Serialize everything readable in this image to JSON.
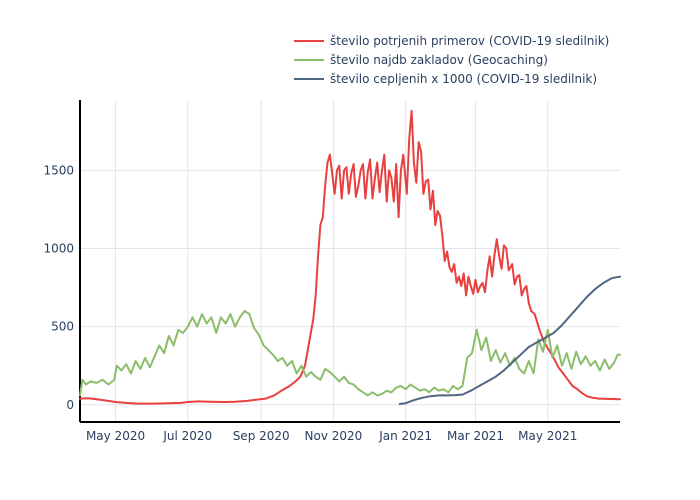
{
  "chart_data": {
    "type": "line",
    "title": "",
    "xlabel": "",
    "ylabel": "",
    "xlim": [
      "2020-04-01",
      "2021-07-01"
    ],
    "ylim": [
      -110,
      1950
    ],
    "grid": true,
    "legend_position": "top-right",
    "x_ticks": [
      {
        "date": "2020-05-01",
        "label": "May 2020"
      },
      {
        "date": "2020-07-01",
        "label": "Jul 2020"
      },
      {
        "date": "2020-09-01",
        "label": "Sep 2020"
      },
      {
        "date": "2020-11-01",
        "label": "Nov 2020"
      },
      {
        "date": "2021-01-01",
        "label": "Jan 2021"
      },
      {
        "date": "2021-03-01",
        "label": "Mar 2021"
      },
      {
        "date": "2021-05-01",
        "label": "May 2021"
      }
    ],
    "y_ticks": [
      0,
      500,
      1000,
      1500
    ],
    "series": [
      {
        "name": "število potrjenih primerov (COVID-19 sledilnik)",
        "color": "#e8403f",
        "points": [
          [
            "2020-04-01",
            40
          ],
          [
            "2020-04-08",
            42
          ],
          [
            "2020-04-15",
            35
          ],
          [
            "2020-04-22",
            28
          ],
          [
            "2020-05-01",
            18
          ],
          [
            "2020-05-10",
            12
          ],
          [
            "2020-05-20",
            8
          ],
          [
            "2020-06-01",
            8
          ],
          [
            "2020-06-15",
            10
          ],
          [
            "2020-06-25",
            12
          ],
          [
            "2020-07-01",
            18
          ],
          [
            "2020-07-10",
            22
          ],
          [
            "2020-07-20",
            20
          ],
          [
            "2020-08-01",
            18
          ],
          [
            "2020-08-10",
            20
          ],
          [
            "2020-08-20",
            25
          ],
          [
            "2020-08-31",
            35
          ],
          [
            "2020-09-05",
            40
          ],
          [
            "2020-09-12",
            60
          ],
          [
            "2020-09-18",
            90
          ],
          [
            "2020-09-25",
            120
          ],
          [
            "2020-09-30",
            150
          ],
          [
            "2020-10-04",
            180
          ],
          [
            "2020-10-08",
            250
          ],
          [
            "2020-10-12",
            420
          ],
          [
            "2020-10-15",
            550
          ],
          [
            "2020-10-17",
            700
          ],
          [
            "2020-10-19",
            950
          ],
          [
            "2020-10-21",
            1150
          ],
          [
            "2020-10-23",
            1200
          ],
          [
            "2020-10-25",
            1400
          ],
          [
            "2020-10-27",
            1550
          ],
          [
            "2020-10-29",
            1600
          ],
          [
            "2020-10-31",
            1480
          ],
          [
            "2020-11-02",
            1350
          ],
          [
            "2020-11-04",
            1500
          ],
          [
            "2020-11-06",
            1530
          ],
          [
            "2020-11-08",
            1320
          ],
          [
            "2020-11-10",
            1500
          ],
          [
            "2020-11-12",
            1520
          ],
          [
            "2020-11-14",
            1350
          ],
          [
            "2020-11-16",
            1480
          ],
          [
            "2020-11-18",
            1540
          ],
          [
            "2020-11-20",
            1330
          ],
          [
            "2020-11-22",
            1400
          ],
          [
            "2020-11-24",
            1500
          ],
          [
            "2020-11-26",
            1540
          ],
          [
            "2020-11-28",
            1320
          ],
          [
            "2020-11-30",
            1490
          ],
          [
            "2020-12-02",
            1570
          ],
          [
            "2020-12-04",
            1320
          ],
          [
            "2020-12-06",
            1450
          ],
          [
            "2020-12-08",
            1550
          ],
          [
            "2020-12-10",
            1360
          ],
          [
            "2020-12-12",
            1500
          ],
          [
            "2020-12-14",
            1600
          ],
          [
            "2020-12-16",
            1300
          ],
          [
            "2020-12-18",
            1500
          ],
          [
            "2020-12-20",
            1450
          ],
          [
            "2020-12-22",
            1300
          ],
          [
            "2020-12-24",
            1540
          ],
          [
            "2020-12-26",
            1200
          ],
          [
            "2020-12-28",
            1500
          ],
          [
            "2020-12-30",
            1600
          ],
          [
            "2021-01-02",
            1350
          ],
          [
            "2021-01-04",
            1700
          ],
          [
            "2021-01-06",
            1880
          ],
          [
            "2021-01-08",
            1550
          ],
          [
            "2021-01-10",
            1420
          ],
          [
            "2021-01-12",
            1680
          ],
          [
            "2021-01-14",
            1620
          ],
          [
            "2021-01-16",
            1350
          ],
          [
            "2021-01-18",
            1430
          ],
          [
            "2021-01-20",
            1440
          ],
          [
            "2021-01-22",
            1250
          ],
          [
            "2021-01-24",
            1370
          ],
          [
            "2021-01-26",
            1150
          ],
          [
            "2021-01-28",
            1240
          ],
          [
            "2021-01-30",
            1210
          ],
          [
            "2021-02-01",
            1080
          ],
          [
            "2021-02-03",
            920
          ],
          [
            "2021-02-05",
            980
          ],
          [
            "2021-02-07",
            880
          ],
          [
            "2021-02-09",
            850
          ],
          [
            "2021-02-11",
            900
          ],
          [
            "2021-02-13",
            780
          ],
          [
            "2021-02-15",
            820
          ],
          [
            "2021-02-17",
            760
          ],
          [
            "2021-02-19",
            840
          ],
          [
            "2021-02-21",
            700
          ],
          [
            "2021-02-23",
            820
          ],
          [
            "2021-02-25",
            760
          ],
          [
            "2021-02-27",
            710
          ],
          [
            "2021-03-01",
            800
          ],
          [
            "2021-03-03",
            720
          ],
          [
            "2021-03-05",
            760
          ],
          [
            "2021-03-07",
            780
          ],
          [
            "2021-03-09",
            720
          ],
          [
            "2021-03-11",
            860
          ],
          [
            "2021-03-13",
            950
          ],
          [
            "2021-03-15",
            820
          ],
          [
            "2021-03-17",
            960
          ],
          [
            "2021-03-19",
            1060
          ],
          [
            "2021-03-21",
            950
          ],
          [
            "2021-03-23",
            870
          ],
          [
            "2021-03-25",
            1020
          ],
          [
            "2021-03-27",
            1000
          ],
          [
            "2021-03-29",
            860
          ],
          [
            "2021-04-01",
            900
          ],
          [
            "2021-04-03",
            770
          ],
          [
            "2021-04-05",
            820
          ],
          [
            "2021-04-07",
            830
          ],
          [
            "2021-04-09",
            700
          ],
          [
            "2021-04-11",
            740
          ],
          [
            "2021-04-13",
            760
          ],
          [
            "2021-04-15",
            650
          ],
          [
            "2021-04-17",
            600
          ],
          [
            "2021-04-20",
            580
          ],
          [
            "2021-04-24",
            480
          ],
          [
            "2021-04-28",
            400
          ],
          [
            "2021-05-02",
            350
          ],
          [
            "2021-05-06",
            300
          ],
          [
            "2021-05-10",
            240
          ],
          [
            "2021-05-14",
            200
          ],
          [
            "2021-05-18",
            160
          ],
          [
            "2021-05-22",
            120
          ],
          [
            "2021-05-26",
            100
          ],
          [
            "2021-05-30",
            75
          ],
          [
            "2021-06-03",
            55
          ],
          [
            "2021-06-08",
            45
          ],
          [
            "2021-06-13",
            40
          ],
          [
            "2021-06-20",
            38
          ],
          [
            "2021-07-01",
            35
          ]
        ]
      },
      {
        "name": "število najdb zakladov (Geocaching)",
        "color": "#8bbd6b",
        "points": [
          [
            "2020-04-01",
            60
          ],
          [
            "2020-04-03",
            160
          ],
          [
            "2020-04-06",
            130
          ],
          [
            "2020-04-10",
            150
          ],
          [
            "2020-04-15",
            140
          ],
          [
            "2020-04-20",
            160
          ],
          [
            "2020-04-25",
            130
          ],
          [
            "2020-04-30",
            160
          ],
          [
            "2020-05-02",
            250
          ],
          [
            "2020-05-06",
            220
          ],
          [
            "2020-05-10",
            260
          ],
          [
            "2020-05-14",
            200
          ],
          [
            "2020-05-18",
            280
          ],
          [
            "2020-05-22",
            230
          ],
          [
            "2020-05-26",
            300
          ],
          [
            "2020-05-30",
            240
          ],
          [
            "2020-06-03",
            310
          ],
          [
            "2020-06-07",
            380
          ],
          [
            "2020-06-11",
            330
          ],
          [
            "2020-06-15",
            440
          ],
          [
            "2020-06-19",
            380
          ],
          [
            "2020-06-23",
            480
          ],
          [
            "2020-06-27",
            460
          ],
          [
            "2020-07-01",
            500
          ],
          [
            "2020-07-05",
            560
          ],
          [
            "2020-07-09",
            500
          ],
          [
            "2020-07-13",
            580
          ],
          [
            "2020-07-17",
            520
          ],
          [
            "2020-07-21",
            560
          ],
          [
            "2020-07-25",
            460
          ],
          [
            "2020-07-29",
            560
          ],
          [
            "2020-08-02",
            520
          ],
          [
            "2020-08-06",
            580
          ],
          [
            "2020-08-10",
            500
          ],
          [
            "2020-08-14",
            560
          ],
          [
            "2020-08-18",
            600
          ],
          [
            "2020-08-22",
            580
          ],
          [
            "2020-08-26",
            490
          ],
          [
            "2020-08-30",
            450
          ],
          [
            "2020-09-03",
            380
          ],
          [
            "2020-09-07",
            350
          ],
          [
            "2020-09-11",
            320
          ],
          [
            "2020-09-15",
            280
          ],
          [
            "2020-09-19",
            300
          ],
          [
            "2020-09-23",
            250
          ],
          [
            "2020-09-27",
            280
          ],
          [
            "2020-10-01",
            200
          ],
          [
            "2020-10-05",
            250
          ],
          [
            "2020-10-09",
            180
          ],
          [
            "2020-10-13",
            210
          ],
          [
            "2020-10-17",
            180
          ],
          [
            "2020-10-21",
            160
          ],
          [
            "2020-10-25",
            230
          ],
          [
            "2020-10-29",
            210
          ],
          [
            "2020-11-02",
            180
          ],
          [
            "2020-11-06",
            150
          ],
          [
            "2020-11-10",
            180
          ],
          [
            "2020-11-14",
            140
          ],
          [
            "2020-11-18",
            130
          ],
          [
            "2020-11-22",
            100
          ],
          [
            "2020-11-26",
            80
          ],
          [
            "2020-11-30",
            60
          ],
          [
            "2020-12-04",
            80
          ],
          [
            "2020-12-08",
            60
          ],
          [
            "2020-12-12",
            70
          ],
          [
            "2020-12-16",
            90
          ],
          [
            "2020-12-20",
            80
          ],
          [
            "2020-12-24",
            110
          ],
          [
            "2020-12-28",
            120
          ],
          [
            "2021-01-01",
            100
          ],
          [
            "2021-01-05",
            130
          ],
          [
            "2021-01-09",
            110
          ],
          [
            "2021-01-13",
            90
          ],
          [
            "2021-01-17",
            100
          ],
          [
            "2021-01-21",
            80
          ],
          [
            "2021-01-25",
            110
          ],
          [
            "2021-01-29",
            90
          ],
          [
            "2021-02-02",
            100
          ],
          [
            "2021-02-06",
            80
          ],
          [
            "2021-02-10",
            120
          ],
          [
            "2021-02-14",
            100
          ],
          [
            "2021-02-18",
            120
          ],
          [
            "2021-02-22",
            300
          ],
          [
            "2021-02-26",
            330
          ],
          [
            "2021-03-02",
            480
          ],
          [
            "2021-03-06",
            350
          ],
          [
            "2021-03-10",
            430
          ],
          [
            "2021-03-14",
            280
          ],
          [
            "2021-03-18",
            350
          ],
          [
            "2021-03-22",
            270
          ],
          [
            "2021-03-26",
            330
          ],
          [
            "2021-03-30",
            250
          ],
          [
            "2021-04-03",
            300
          ],
          [
            "2021-04-07",
            230
          ],
          [
            "2021-04-11",
            200
          ],
          [
            "2021-04-15",
            280
          ],
          [
            "2021-04-19",
            200
          ],
          [
            "2021-04-23",
            420
          ],
          [
            "2021-04-27",
            340
          ],
          [
            "2021-05-01",
            480
          ],
          [
            "2021-05-05",
            300
          ],
          [
            "2021-05-09",
            380
          ],
          [
            "2021-05-13",
            250
          ],
          [
            "2021-05-17",
            330
          ],
          [
            "2021-05-21",
            230
          ],
          [
            "2021-05-25",
            340
          ],
          [
            "2021-05-29",
            260
          ],
          [
            "2021-06-02",
            310
          ],
          [
            "2021-06-06",
            250
          ],
          [
            "2021-06-10",
            280
          ],
          [
            "2021-06-14",
            220
          ],
          [
            "2021-06-18",
            290
          ],
          [
            "2021-06-22",
            230
          ],
          [
            "2021-06-26",
            270
          ],
          [
            "2021-06-29",
            320
          ],
          [
            "2021-07-01",
            320
          ]
        ]
      },
      {
        "name": "število cepljenih x 1000 (COVID-19 sledilnik)",
        "color": "#506784",
        "points": [
          [
            "2020-12-27",
            5
          ],
          [
            "2021-01-01",
            10
          ],
          [
            "2021-01-08",
            30
          ],
          [
            "2021-01-15",
            45
          ],
          [
            "2021-01-22",
            55
          ],
          [
            "2021-01-29",
            60
          ],
          [
            "2021-02-05",
            60
          ],
          [
            "2021-02-12",
            62
          ],
          [
            "2021-02-18",
            65
          ],
          [
            "2021-02-25",
            90
          ],
          [
            "2021-03-04",
            120
          ],
          [
            "2021-03-11",
            150
          ],
          [
            "2021-03-18",
            180
          ],
          [
            "2021-03-25",
            220
          ],
          [
            "2021-04-01",
            270
          ],
          [
            "2021-04-08",
            320
          ],
          [
            "2021-04-15",
            370
          ],
          [
            "2021-04-22",
            400
          ],
          [
            "2021-04-29",
            430
          ],
          [
            "2021-05-06",
            460
          ],
          [
            "2021-05-13",
            510
          ],
          [
            "2021-05-20",
            570
          ],
          [
            "2021-05-27",
            630
          ],
          [
            "2021-06-03",
            690
          ],
          [
            "2021-06-10",
            740
          ],
          [
            "2021-06-17",
            780
          ],
          [
            "2021-06-24",
            810
          ],
          [
            "2021-07-01",
            820
          ]
        ]
      }
    ]
  }
}
